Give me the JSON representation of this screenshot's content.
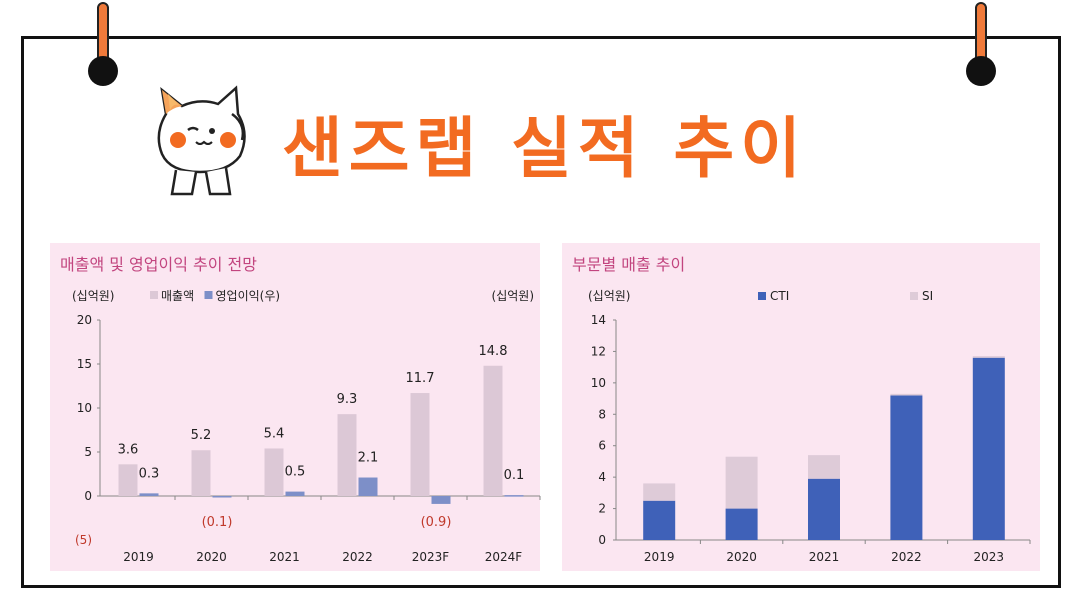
{
  "title": "샌즈랩 실적 추이",
  "colors": {
    "accent": "#f26b21",
    "sales_bar": "#dcc8d6",
    "profit_bar": "#7d8fc8",
    "cti_bar": "#3f61b8",
    "si_bar": "#decbd8",
    "negative_label": "#c0392b",
    "panel_bg": "#fbe6f1"
  },
  "chart_data": [
    {
      "type": "bar",
      "title": "매출액 및 영업이익 추이 전망",
      "unit_left": "(십억원)",
      "unit_right": "(십억원)",
      "categories": [
        "2019",
        "2020",
        "2021",
        "2022",
        "2023F",
        "2024F"
      ],
      "series": [
        {
          "name": "매출액",
          "values": [
            3.6,
            5.2,
            5.4,
            9.3,
            11.7,
            14.8
          ],
          "labels": [
            "3.6",
            "5.2",
            "5.4",
            "9.3",
            "11.7",
            "14.8"
          ]
        },
        {
          "name": "영업이익(우)",
          "values": [
            0.3,
            -0.1,
            0.5,
            2.1,
            -0.9,
            0.1
          ],
          "labels": [
            "0.3",
            "(0.1)",
            "0.5",
            "2.1",
            "(0.9)",
            "0.1"
          ]
        }
      ],
      "yticks": [
        20,
        15,
        10,
        5,
        0,
        -5
      ],
      "ytick_labels": [
        "20",
        "15",
        "10",
        "5",
        "0",
        "(5)"
      ],
      "ylim": [
        -5,
        20
      ],
      "legend": "top-left"
    },
    {
      "type": "bar",
      "stacked": true,
      "title": "부문별 매출 추이",
      "unit_left": "(십억원)",
      "categories": [
        "2019",
        "2020",
        "2021",
        "2022",
        "2023"
      ],
      "series": [
        {
          "name": "CTI",
          "values": [
            2.5,
            2.0,
            3.9,
            9.2,
            11.6
          ]
        },
        {
          "name": "SI",
          "values": [
            1.1,
            3.3,
            1.5,
            0.1,
            0.1
          ]
        }
      ],
      "yticks": [
        14,
        12,
        10,
        8,
        6,
        4,
        2,
        0
      ],
      "ylim": [
        0,
        14
      ],
      "legend": "top"
    }
  ]
}
